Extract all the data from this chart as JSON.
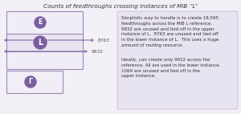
{
  "title": "Counts of feedthroughs crossing instances of MIB “L”",
  "title_fontsize": 5.2,
  "bg_color": "#f2f0f6",
  "border_color": "#9b89b8",
  "label_E": "E",
  "label_L": "L",
  "label_G": "Γ",
  "circle_color": "#7a5fa0",
  "circle_text_color": "#ffffff",
  "arrow_color": "#7a5fa0",
  "num_8763": "8763",
  "num_9832": "9832",
  "text_box_color": "#e8e3f0",
  "text_body1": "Simplistic way to handle is to create 18,595\nfeedthroughs across the MIB L reference.\n9832 are unused and tied off in the upper\ninstance of L.  8763 are unused and tied off\nin the lower instance of L.  This uses a huge\namount of routing resource.",
  "text_body2": "Ideally, can create only 9832 across the\nreference. All are used in the lower instance.\n1069 are unused and tied off in the\nupper instance.",
  "text_fontsize": 4.0
}
